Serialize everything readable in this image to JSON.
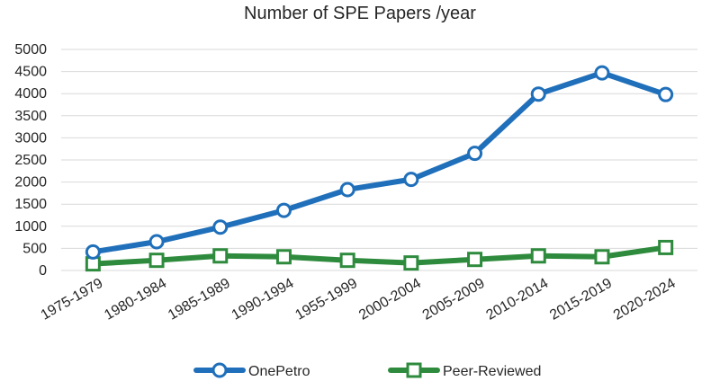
{
  "chart_data": {
    "type": "line",
    "title": "Number of SPE Papers /year",
    "xlabel": "",
    "ylabel": "",
    "categories": [
      "1975-1979",
      "1980-1984",
      "1985-1989",
      "1990-1994",
      "1955-1999",
      "2000-2004",
      "2005-2009",
      "2010-2014",
      "2015-2019",
      "2020-2024"
    ],
    "yticks": [
      "0",
      "500",
      "1000",
      "1500",
      "2000",
      "2500",
      "3000",
      "3500",
      "4000",
      "4500",
      "5000"
    ],
    "ylim": [
      0,
      5000
    ],
    "grid": true,
    "legend_position": "bottom",
    "series": [
      {
        "name": "OnePetro",
        "color": "#1f6fba",
        "marker": "circle",
        "values": [
          420,
          650,
          980,
          1360,
          1830,
          2060,
          2650,
          3990,
          4470,
          3980
        ]
      },
      {
        "name": "Peer-Reviewed",
        "color": "#2e8b3d",
        "marker": "square",
        "values": [
          150,
          230,
          330,
          310,
          230,
          170,
          250,
          330,
          310,
          520
        ]
      }
    ]
  }
}
